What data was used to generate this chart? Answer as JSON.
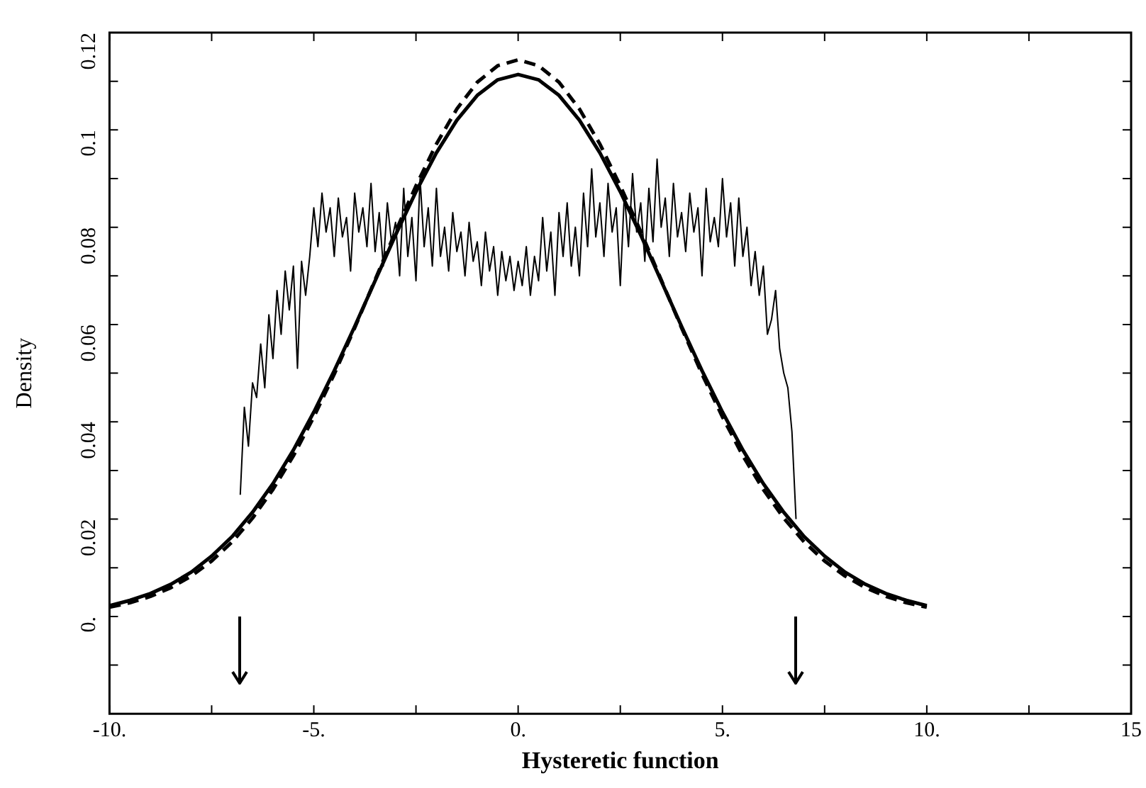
{
  "chart_data": {
    "type": "line",
    "xlabel": "Hysteretic function",
    "ylabel": "Density",
    "xlim": [
      -10,
      15
    ],
    "ylim": [
      -0.02,
      0.12
    ],
    "xticks": [
      {
        "value": -10,
        "label": "-10."
      },
      {
        "value": -7.5,
        "label": null
      },
      {
        "value": -5,
        "label": "-5."
      },
      {
        "value": -2.5,
        "label": null
      },
      {
        "value": 0,
        "label": "0."
      },
      {
        "value": 2.5,
        "label": null
      },
      {
        "value": 5,
        "label": "5."
      },
      {
        "value": 7.5,
        "label": null
      },
      {
        "value": 10,
        "label": "10."
      },
      {
        "value": 12.5,
        "label": null
      },
      {
        "value": 15,
        "label": "15"
      }
    ],
    "yticks": [
      {
        "value": -0.01,
        "label": null
      },
      {
        "value": 0,
        "label": "0."
      },
      {
        "value": 0.01,
        "label": null
      },
      0.02,
      {
        "value": 0.03,
        "label": null
      },
      0.04,
      {
        "value": 0.05,
        "label": null
      },
      0.06,
      {
        "value": 0.07,
        "label": null
      },
      0.08,
      {
        "value": 0.09,
        "label": null
      },
      0.1,
      {
        "value": 0.11,
        "label": null
      },
      0.12
    ],
    "grid": false,
    "legend": false,
    "marker": "none",
    "series": [
      {
        "color": "#000000",
        "line_style": "solid",
        "x": [
          -6.8,
          -6.7,
          -6.6,
          -6.5,
          -6.4,
          -6.3,
          -6.2,
          -6.1,
          -6.0,
          -5.9,
          -5.8,
          -5.7,
          -5.6,
          -5.5,
          -5.4,
          -5.3,
          -5.2,
          -5.1,
          -5.0,
          -4.9,
          -4.8,
          -4.7,
          -4.6,
          -4.5,
          -4.4,
          -4.3,
          -4.2,
          -4.1,
          -4.0,
          -3.9,
          -3.8,
          -3.7,
          -3.6,
          -3.5,
          -3.4,
          -3.3,
          -3.2,
          -3.1,
          -3.0,
          -2.9,
          -2.8,
          -2.7,
          -2.6,
          -2.5,
          -2.4,
          -2.3,
          -2.2,
          -2.1,
          -2.0,
          -1.9,
          -1.8,
          -1.7,
          -1.6,
          -1.5,
          -1.4,
          -1.3,
          -1.2,
          -1.1,
          -1.0,
          -0.9,
          -0.8,
          -0.7,
          -0.6,
          -0.5,
          -0.4,
          -0.3,
          -0.2,
          -0.1,
          0.0,
          0.1,
          0.2,
          0.3,
          0.4,
          0.5,
          0.6,
          0.7,
          0.8,
          0.9,
          1.0,
          1.1,
          1.2,
          1.3,
          1.4,
          1.5,
          1.6,
          1.7,
          1.8,
          1.9,
          2.0,
          2.1,
          2.2,
          2.3,
          2.4,
          2.5,
          2.6,
          2.7,
          2.8,
          2.9,
          3.0,
          3.1,
          3.2,
          3.3,
          3.4,
          3.5,
          3.6,
          3.7,
          3.8,
          3.9,
          4.0,
          4.1,
          4.2,
          4.3,
          4.4,
          4.5,
          4.6,
          4.7,
          4.8,
          4.9,
          5.0,
          5.1,
          5.2,
          5.3,
          5.4,
          5.5,
          5.6,
          5.7,
          5.8,
          5.9,
          6.0,
          6.1,
          6.2,
          6.3,
          6.4,
          6.5,
          6.6,
          6.7,
          6.8
        ],
        "values": [
          0.025,
          0.043,
          0.035,
          0.048,
          0.045,
          0.056,
          0.047,
          0.062,
          0.053,
          0.067,
          0.058,
          0.071,
          0.063,
          0.072,
          0.051,
          0.073,
          0.066,
          0.074,
          0.084,
          0.076,
          0.087,
          0.079,
          0.084,
          0.074,
          0.086,
          0.078,
          0.082,
          0.071,
          0.087,
          0.079,
          0.084,
          0.076,
          0.089,
          0.075,
          0.083,
          0.072,
          0.085,
          0.077,
          0.081,
          0.07,
          0.088,
          0.074,
          0.082,
          0.069,
          0.09,
          0.076,
          0.084,
          0.072,
          0.088,
          0.074,
          0.08,
          0.071,
          0.083,
          0.075,
          0.079,
          0.07,
          0.081,
          0.073,
          0.077,
          0.068,
          0.079,
          0.071,
          0.076,
          0.066,
          0.075,
          0.069,
          0.074,
          0.067,
          0.073,
          0.068,
          0.076,
          0.066,
          0.074,
          0.069,
          0.082,
          0.071,
          0.079,
          0.066,
          0.083,
          0.074,
          0.085,
          0.072,
          0.08,
          0.07,
          0.087,
          0.076,
          0.092,
          0.078,
          0.085,
          0.074,
          0.089,
          0.079,
          0.084,
          0.068,
          0.087,
          0.076,
          0.091,
          0.079,
          0.085,
          0.073,
          0.088,
          0.077,
          0.094,
          0.08,
          0.086,
          0.074,
          0.089,
          0.078,
          0.083,
          0.075,
          0.087,
          0.079,
          0.084,
          0.07,
          0.088,
          0.077,
          0.082,
          0.076,
          0.09,
          0.078,
          0.085,
          0.072,
          0.086,
          0.074,
          0.08,
          0.068,
          0.075,
          0.066,
          0.072,
          0.058,
          0.061,
          0.067,
          0.055,
          0.05,
          0.047,
          0.038,
          0.02
        ]
      },
      {
        "color": "#000000",
        "line_style": "solid",
        "x": [
          -10,
          -9.5,
          -9,
          -8.5,
          -8,
          -7.5,
          -7,
          -6.5,
          -6,
          -5.5,
          -5,
          -4.5,
          -4,
          -3.5,
          -3,
          -2.5,
          -2,
          -1.5,
          -1,
          -0.5,
          0,
          0.5,
          1,
          1.5,
          2,
          2.5,
          3,
          3.5,
          4,
          4.5,
          5,
          5.5,
          6,
          6.5,
          7,
          7.5,
          8,
          8.5,
          9,
          9.5,
          10
        ],
        "values": [
          0.0022,
          0.0033,
          0.0047,
          0.0066,
          0.0091,
          0.0124,
          0.0164,
          0.0214,
          0.0273,
          0.0342,
          0.042,
          0.0505,
          0.0596,
          0.069,
          0.0784,
          0.0873,
          0.0953,
          0.102,
          0.1071,
          0.1103,
          0.1114,
          0.1103,
          0.1071,
          0.102,
          0.0953,
          0.0873,
          0.0784,
          0.069,
          0.0596,
          0.0505,
          0.042,
          0.0342,
          0.0273,
          0.0214,
          0.0164,
          0.0124,
          0.0091,
          0.0066,
          0.0047,
          0.0033,
          0.0022
        ]
      },
      {
        "color": "#000000",
        "line_style": "dashed",
        "x": [
          -10,
          -9.5,
          -9,
          -8.5,
          -8,
          -7.5,
          -7,
          -6.5,
          -6,
          -5.5,
          -5,
          -4.5,
          -4,
          -3.5,
          -3,
          -2.5,
          -2,
          -1.5,
          -1,
          -0.5,
          0,
          0.5,
          1,
          1.5,
          2,
          2.5,
          3,
          3.5,
          4,
          4.5,
          5,
          5.5,
          6,
          6.5,
          7,
          7.5,
          8,
          8.5,
          9,
          9.5,
          10
        ],
        "values": [
          0.0019,
          0.0028,
          0.0041,
          0.0059,
          0.0083,
          0.0114,
          0.0153,
          0.0202,
          0.0261,
          0.033,
          0.041,
          0.0498,
          0.0593,
          0.0692,
          0.0791,
          0.0885,
          0.0971,
          0.1043,
          0.1098,
          0.1132,
          0.1144,
          0.1132,
          0.1098,
          0.1043,
          0.0971,
          0.0885,
          0.0791,
          0.0692,
          0.0593,
          0.0498,
          0.041,
          0.033,
          0.0261,
          0.0202,
          0.0153,
          0.0114,
          0.0083,
          0.0059,
          0.0041,
          0.0028,
          0.0019
        ]
      }
    ]
  }
}
